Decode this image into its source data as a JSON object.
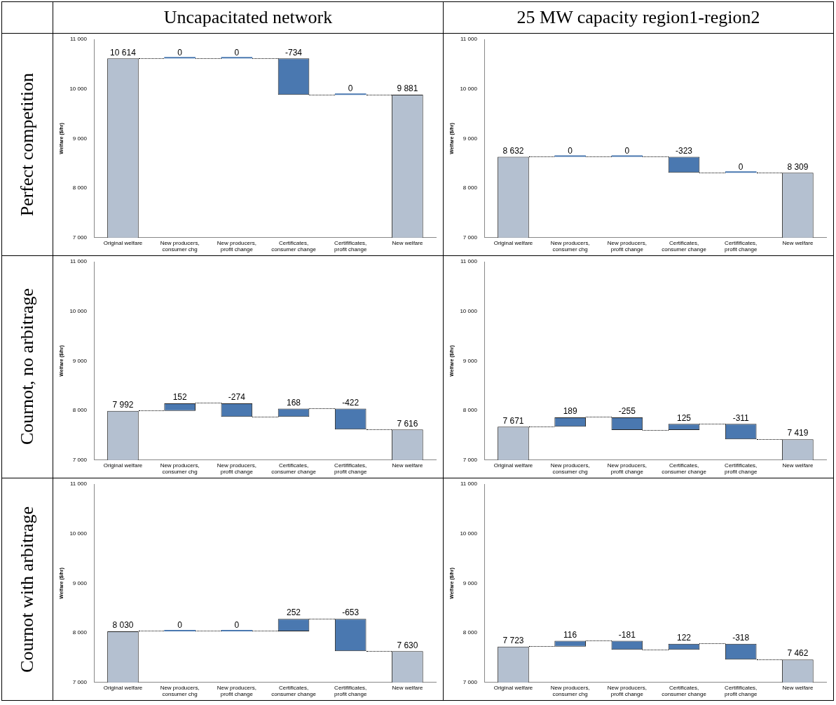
{
  "chart_data": [
    {
      "type": "bar",
      "title": "Uncapacitated network",
      "annotations": [
        "Perfect competition"
      ],
      "ylabel": "Welfare ($/hr)",
      "categories": [
        "Original welfare",
        "New producers, consumer chg",
        "New producers, profit change",
        "Certificates, consumer change",
        "Certifificates, profit change",
        "New welfare"
      ],
      "values": [
        10614,
        0,
        0,
        -734,
        0,
        9881
      ],
      "base": [
        null,
        10614,
        10614,
        10614,
        9880,
        null
      ],
      "colors": [
        "#b4c0d0",
        "#4a78b0",
        "#4a78b0",
        "#4a78b0",
        "#4a78b0",
        "#b4c0d0"
      ],
      "value_labels": [
        "10 614",
        "0",
        "0",
        "-734",
        "0",
        "9 881"
      ],
      "ylim": [
        7000,
        11000
      ],
      "yticks": [
        {
          "value": 7000,
          "label": "7 000"
        },
        {
          "value": 8000,
          "label": "8 000"
        },
        {
          "value": 9000,
          "label": "9 000"
        },
        {
          "value": 10000,
          "label": "10 000"
        },
        {
          "value": 11000,
          "label": "11 000"
        }
      ],
      "legend": false,
      "grid": false
    },
    {
      "type": "bar",
      "title": "25 MW capacity region1-region2",
      "ylabel": "Welfare ($/hr)",
      "categories": [
        "Original welfare",
        "New producers, consumer chg",
        "New producers, profit change",
        "Certificates, consumer change",
        "Certifificates, profit change",
        "New welfare"
      ],
      "values": [
        8632,
        0,
        0,
        -323,
        0,
        8309
      ],
      "base": [
        null,
        8632,
        8632,
        8632,
        8309,
        null
      ],
      "colors": [
        "#b4c0d0",
        "#4a78b0",
        "#4a78b0",
        "#4a78b0",
        "#4a78b0",
        "#b4c0d0"
      ],
      "value_labels": [
        "8 632",
        "0",
        "0",
        "-323",
        "0",
        "8 309"
      ],
      "ylim": [
        7000,
        11000
      ],
      "yticks": [
        {
          "value": 7000,
          "label": "7 000"
        },
        {
          "value": 8000,
          "label": "8 000"
        },
        {
          "value": 9000,
          "label": "9 000"
        },
        {
          "value": 10000,
          "label": "10 000"
        },
        {
          "value": 11000,
          "label": "11 000"
        }
      ],
      "legend": false,
      "grid": false
    },
    {
      "type": "bar",
      "annotations": [
        "Cournot, no arbitrage"
      ],
      "ylabel": "Welfare ($/hr)",
      "categories": [
        "Original welfare",
        "New producers, consumer chg",
        "New producers, profit change",
        "Certificates, consumer change",
        "Certifificates, profit change",
        "New welfare"
      ],
      "values": [
        7992,
        152,
        -274,
        168,
        -422,
        7616
      ],
      "base": [
        null,
        7992,
        8144,
        7870,
        8038,
        null
      ],
      "colors": [
        "#b4c0d0",
        "#4a78b0",
        "#4a78b0",
        "#4a78b0",
        "#4a78b0",
        "#b4c0d0"
      ],
      "value_labels": [
        "7 992",
        "152",
        "-274",
        "168",
        "-422",
        "7 616"
      ],
      "ylim": [
        7000,
        11000
      ],
      "yticks": [
        {
          "value": 7000,
          "label": "7 000"
        },
        {
          "value": 8000,
          "label": "8 000"
        },
        {
          "value": 9000,
          "label": "9 000"
        },
        {
          "value": 10000,
          "label": "10 000"
        },
        {
          "value": 11000,
          "label": "11 000"
        }
      ],
      "legend": false,
      "grid": false
    },
    {
      "type": "bar",
      "ylabel": "Welfare ($/hr)",
      "categories": [
        "Original welfare",
        "New producers, consumer chg",
        "New producers, profit change",
        "Certificates, consumer change",
        "Certifificates, profit change",
        "New welfare"
      ],
      "values": [
        7671,
        189,
        -255,
        125,
        -311,
        7419
      ],
      "base": [
        null,
        7671,
        7860,
        7605,
        7730,
        null
      ],
      "colors": [
        "#b4c0d0",
        "#4a78b0",
        "#4a78b0",
        "#4a78b0",
        "#4a78b0",
        "#b4c0d0"
      ],
      "value_labels": [
        "7 671",
        "189",
        "-255",
        "125",
        "-311",
        "7 419"
      ],
      "ylim": [
        7000,
        11000
      ],
      "yticks": [
        {
          "value": 7000,
          "label": "7 000"
        },
        {
          "value": 8000,
          "label": "8 000"
        },
        {
          "value": 9000,
          "label": "9 000"
        },
        {
          "value": 10000,
          "label": "10 000"
        },
        {
          "value": 11000,
          "label": "11 000"
        }
      ],
      "legend": false,
      "grid": false
    },
    {
      "type": "bar",
      "annotations": [
        "Cournot with arbitrage"
      ],
      "ylabel": "Welfare ($/hr)",
      "categories": [
        "Original welfare",
        "New producers, consumer chg",
        "New producers, profit change",
        "Certificates, consumer change",
        "Certifificates, profit change",
        "New welfare"
      ],
      "values": [
        8030,
        0,
        0,
        252,
        -653,
        7630
      ],
      "base": [
        null,
        8030,
        8030,
        8030,
        8282,
        null
      ],
      "colors": [
        "#b4c0d0",
        "#4a78b0",
        "#4a78b0",
        "#4a78b0",
        "#4a78b0",
        "#b4c0d0"
      ],
      "value_labels": [
        "8 030",
        "0",
        "0",
        "252",
        "-653",
        "7 630"
      ],
      "ylim": [
        7000,
        11000
      ],
      "yticks": [
        {
          "value": 7000,
          "label": "7 000"
        },
        {
          "value": 8000,
          "label": "8 000"
        },
        {
          "value": 9000,
          "label": "9 000"
        },
        {
          "value": 10000,
          "label": "10 000"
        },
        {
          "value": 11000,
          "label": "11 000"
        }
      ],
      "legend": false,
      "grid": false
    },
    {
      "type": "bar",
      "ylabel": "Welfare ($/hr)",
      "categories": [
        "Original welfare",
        "New producers, consumer chg",
        "New producers, profit change",
        "Certificates, consumer change",
        "Certifificates, profit change",
        "New welfare"
      ],
      "values": [
        7723,
        116,
        -181,
        122,
        -318,
        7462
      ],
      "base": [
        null,
        7723,
        7839,
        7658,
        7780,
        null
      ],
      "colors": [
        "#b4c0d0",
        "#4a78b0",
        "#4a78b0",
        "#4a78b0",
        "#4a78b0",
        "#b4c0d0"
      ],
      "value_labels": [
        "7 723",
        "116",
        "-181",
        "122",
        "-318",
        "7 462"
      ],
      "ylim": [
        7000,
        11000
      ],
      "yticks": [
        {
          "value": 7000,
          "label": "7 000"
        },
        {
          "value": 8000,
          "label": "8 000"
        },
        {
          "value": 9000,
          "label": "9 000"
        },
        {
          "value": 10000,
          "label": "10 000"
        },
        {
          "value": 11000,
          "label": "11 000"
        }
      ],
      "legend": false,
      "grid": false
    }
  ]
}
